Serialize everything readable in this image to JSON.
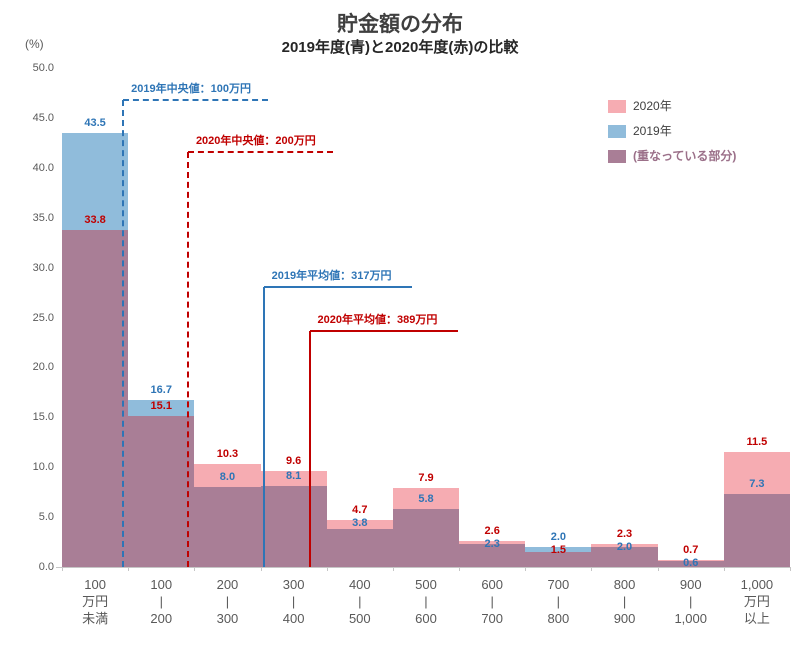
{
  "chart_data": {
    "type": "bar",
    "title": "貯金額の分布",
    "subtitle": "2019年度(青)と2020年度(赤)の比較",
    "ylabel": "(%)",
    "ylim": [
      0,
      50
    ],
    "ytick_step": 5,
    "yticks": [
      "0.0",
      "5.0",
      "10.0",
      "15.0",
      "20.0",
      "25.0",
      "30.0",
      "35.0",
      "40.0",
      "45.0",
      "50.0"
    ],
    "grid": false,
    "legend_position": "top-right",
    "categories": [
      [
        "100",
        "万円",
        "未満"
      ],
      [
        "100",
        "|",
        "200"
      ],
      [
        "200",
        "|",
        "300"
      ],
      [
        "300",
        "|",
        "400"
      ],
      [
        "400",
        "|",
        "500"
      ],
      [
        "500",
        "|",
        "600"
      ],
      [
        "600",
        "|",
        "700"
      ],
      [
        "700",
        "|",
        "800"
      ],
      [
        "800",
        "|",
        "900"
      ],
      [
        "900",
        "|",
        "1,000"
      ],
      [
        "1,000",
        "万円",
        "以上"
      ]
    ],
    "series": [
      {
        "name": "2020年",
        "color": "#F6ACB2",
        "label_color": "#C00000",
        "values": [
          33.8,
          15.1,
          10.3,
          9.6,
          4.7,
          7.9,
          2.6,
          1.5,
          2.3,
          0.7,
          11.5
        ]
      },
      {
        "name": "2019年",
        "color": "#90BCDB",
        "label_color": "#2E75B6",
        "values": [
          43.5,
          16.7,
          8.0,
          8.1,
          3.8,
          5.8,
          2.3,
          2.0,
          2.0,
          0.6,
          7.3
        ]
      }
    ],
    "overlap": {
      "label": "(重なっている部分)",
      "color": "#A97E96"
    },
    "legend": [
      {
        "label": "2020年",
        "color": "#F6ACB2",
        "text_color": "#404040",
        "bold": false
      },
      {
        "label": "2019年",
        "color": "#90BCDB",
        "text_color": "#404040",
        "bold": false
      },
      {
        "label": "(重なっている部分)",
        "color": "#A97E96",
        "text_color": "#9B7089",
        "bold": true
      }
    ],
    "annotations": [
      {
        "text": "2019年中央値：100万円",
        "color": "#2E75B6",
        "style": "dashed",
        "xf": 0.084,
        "top": 46.8,
        "hlen": 145
      },
      {
        "text": "2020年中央値：200万円",
        "color": "#C00000",
        "style": "dashed",
        "xf": 0.173,
        "top": 41.6,
        "hlen": 145
      },
      {
        "text": "2019年平均値：317万円",
        "color": "#2E75B6",
        "style": "solid",
        "xf": 0.277,
        "top": 28.1,
        "hlen": 148
      },
      {
        "text": "2020年平均値：389万円",
        "color": "#C00000",
        "style": "solid",
        "xf": 0.34,
        "top": 23.6,
        "hlen": 148
      }
    ],
    "axis_color": "#C6C6C6"
  }
}
